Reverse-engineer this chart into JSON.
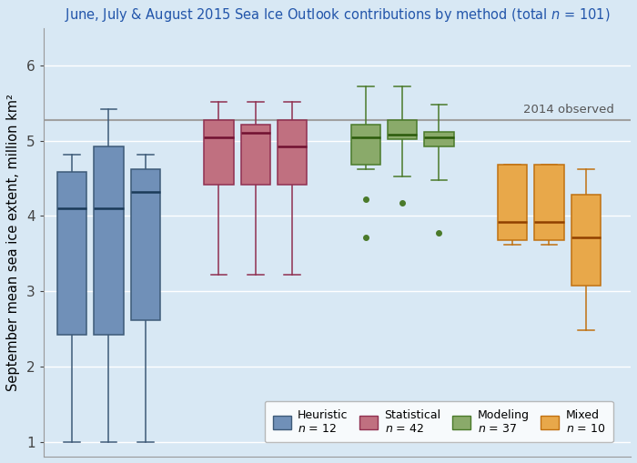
{
  "title": "June, July & August 2015 Sea Ice Outlook contributions by method (total $n$ = 101)",
  "ylabel": "September mean sea ice extent, million km²",
  "ylim": [
    0.8,
    6.5
  ],
  "yticks": [
    1,
    2,
    3,
    4,
    5,
    6
  ],
  "observed_line": 5.27,
  "observed_label": "2014 observed",
  "background_color": "#d8e8f4",
  "grid_color": "#ffffff",
  "groups": [
    "Heuristic",
    "Statistical",
    "Modeling",
    "Mixed"
  ],
  "group_ns": [
    12,
    42,
    37,
    10
  ],
  "colors": {
    "Heuristic": "#7090b8",
    "Statistical": "#c07080",
    "Modeling": "#8aaa6a",
    "Mixed": "#e8a84a"
  },
  "box_edge_colors": {
    "Heuristic": "#3d5a78",
    "Statistical": "#903050",
    "Modeling": "#4a7a2a",
    "Mixed": "#c07010"
  },
  "median_colors": {
    "Heuristic": "#1a3a58",
    "Statistical": "#701030",
    "Modeling": "#2a5a0a",
    "Mixed": "#904000"
  },
  "box_positions": {
    "Heuristic": [
      1.0,
      1.9,
      2.8
    ],
    "Statistical": [
      4.6,
      5.5,
      6.4
    ],
    "Modeling": [
      8.2,
      9.1,
      10.0
    ],
    "Mixed": [
      11.8,
      12.7,
      13.6
    ]
  },
  "box_width": 0.72,
  "xlim": [
    0.3,
    14.7
  ],
  "boxes": {
    "Heuristic": [
      {
        "whislo": 1.0,
        "q1": 2.42,
        "med": 4.1,
        "q3": 4.58,
        "whishi": 4.82
      },
      {
        "whislo": 1.0,
        "q1": 2.42,
        "med": 4.1,
        "q3": 4.92,
        "whishi": 5.42
      },
      {
        "whislo": 1.0,
        "q1": 2.62,
        "med": 4.32,
        "q3": 4.62,
        "whishi": 4.82
      }
    ],
    "Statistical": [
      {
        "whislo": 3.22,
        "q1": 4.42,
        "med": 5.05,
        "q3": 5.28,
        "whishi": 5.52
      },
      {
        "whislo": 3.22,
        "q1": 4.42,
        "med": 5.1,
        "q3": 5.22,
        "whishi": 5.52
      },
      {
        "whislo": 3.22,
        "q1": 4.42,
        "med": 4.92,
        "q3": 5.28,
        "whishi": 5.52
      }
    ],
    "Modeling": [
      {
        "whislo": 4.62,
        "q1": 4.68,
        "med": 5.05,
        "q3": 5.22,
        "whishi": 5.72,
        "fliers": [
          3.72,
          4.22
        ]
      },
      {
        "whislo": 4.52,
        "q1": 5.02,
        "med": 5.08,
        "q3": 5.28,
        "whishi": 5.72,
        "fliers": [
          4.18
        ]
      },
      {
        "whislo": 4.48,
        "q1": 4.92,
        "med": 5.05,
        "q3": 5.12,
        "whishi": 5.48,
        "fliers": [
          3.78
        ]
      }
    ],
    "Mixed": [
      {
        "whislo": 3.62,
        "q1": 3.68,
        "med": 3.92,
        "q3": 4.68,
        "whishi": 4.68
      },
      {
        "whislo": 3.62,
        "q1": 3.68,
        "med": 3.92,
        "q3": 4.68,
        "whishi": 4.68
      },
      {
        "whislo": 2.48,
        "q1": 3.08,
        "med": 3.72,
        "q3": 4.28,
        "whishi": 4.62
      }
    ]
  }
}
